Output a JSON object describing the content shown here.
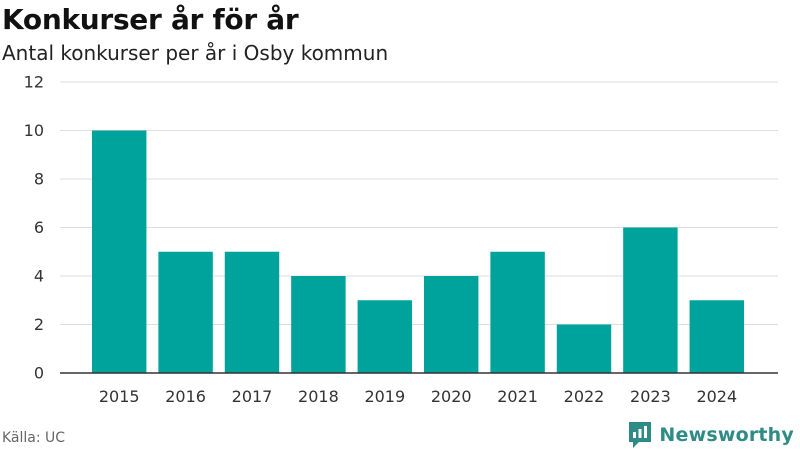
{
  "title": "Konkurser år för år",
  "subtitle": "Antal konkurser per år i Osby kommun",
  "source": "Källa: UC",
  "brand": {
    "name": "Newsworthy",
    "icon": "newsworthy-logo-icon"
  },
  "colors": {
    "bar": "#00a39b",
    "grid": "#dddddd",
    "axis": "#333333",
    "brand": "#2e8b86"
  },
  "chart_data": {
    "type": "bar",
    "title": "Konkurser år för år",
    "subtitle": "Antal konkurser per år i Osby kommun",
    "xlabel": "",
    "ylabel": "",
    "categories": [
      "2015",
      "2016",
      "2017",
      "2018",
      "2019",
      "2020",
      "2021",
      "2022",
      "2023",
      "2024"
    ],
    "values": [
      10,
      5,
      5,
      4,
      3,
      4,
      5,
      2,
      6,
      3
    ],
    "ylim": [
      0,
      12
    ],
    "yticks": [
      0,
      2,
      4,
      6,
      8,
      10,
      12
    ],
    "grid": true,
    "legend": "none"
  }
}
